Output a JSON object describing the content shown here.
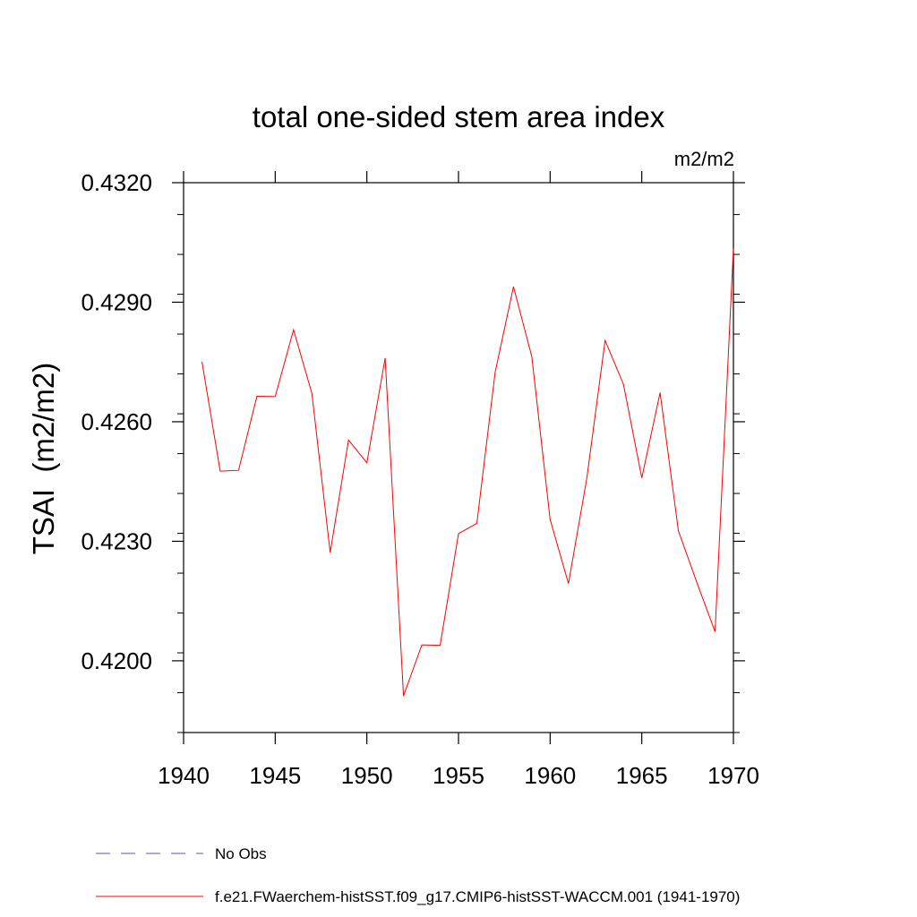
{
  "chart_data": {
    "type": "line",
    "title": "total one-sided stem area index",
    "units_label": "m2/m2",
    "ylabel": "TSAI  (m2/m2)",
    "xlabel": "",
    "xlim": [
      1940,
      1970
    ],
    "ylim": [
      0.4182,
      0.432
    ],
    "x_ticks": [
      1940,
      1945,
      1950,
      1955,
      1960,
      1965,
      1970
    ],
    "x_tick_labels": [
      "1940",
      "1945",
      "1950",
      "1955",
      "1960",
      "1965",
      "1970"
    ],
    "y_ticks": [
      0.42,
      0.423,
      0.426,
      0.429,
      0.432
    ],
    "y_tick_labels": [
      "0.4200",
      "0.4230",
      "0.4260",
      "0.4290",
      "0.4320"
    ],
    "grid": false,
    "legend_position": "bottom",
    "series": [
      {
        "name": "No Obs",
        "color": "#5a4fcf",
        "dash": "dashed",
        "x": [],
        "y": []
      },
      {
        "name": "f.e21.FWaerchem-histSST.f09_g17.CMIP6-histSST-WACCM.001 (1941-1970)",
        "color": "#ff0000",
        "dash": "solid",
        "x": [
          1941,
          1942,
          1943,
          1944,
          1945,
          1946,
          1947,
          1948,
          1949,
          1950,
          1951,
          1952,
          1953,
          1954,
          1955,
          1956,
          1957,
          1958,
          1959,
          1960,
          1961,
          1962,
          1963,
          1964,
          1965,
          1966,
          1967,
          1968,
          1969,
          1970
        ],
        "y": [
          0.42751,
          0.42476,
          0.42478,
          0.42664,
          0.42663,
          0.42831,
          0.42671,
          0.42272,
          0.42554,
          0.42497,
          0.4276,
          0.41912,
          0.4204,
          0.42039,
          0.42319,
          0.42345,
          0.42724,
          0.42939,
          0.42763,
          0.42355,
          0.42194,
          0.42458,
          0.42804,
          0.42694,
          0.42459,
          0.42673,
          0.42326,
          0.42197,
          0.42073,
          0.43035
        ]
      }
    ]
  }
}
